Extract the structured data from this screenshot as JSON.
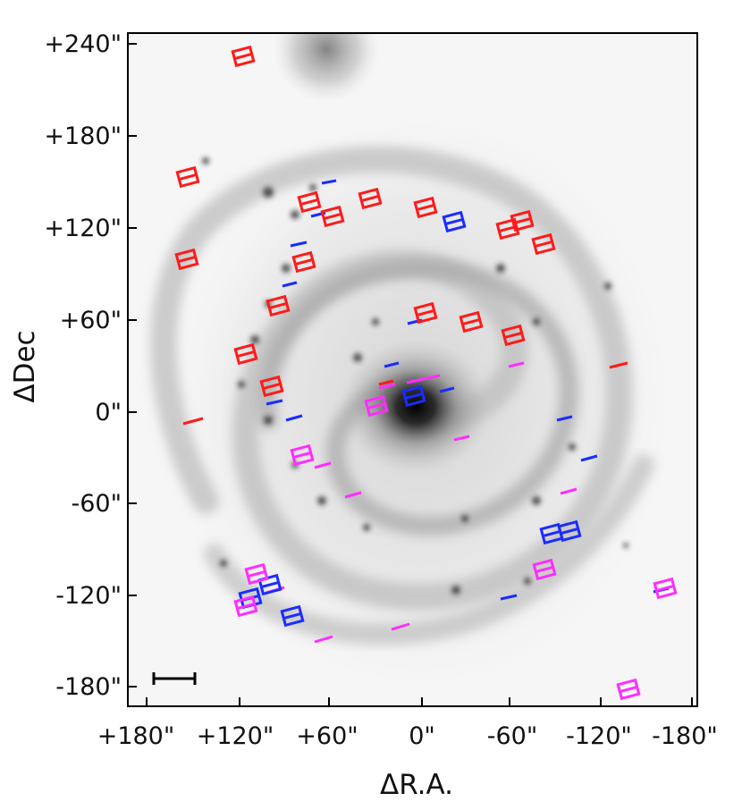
{
  "axes": {
    "x_label": "ΔR.A.",
    "y_label": "ΔDec",
    "x_ticks": [
      "+180\"",
      "+120\"",
      "+60\"",
      "0\"",
      "-60\"",
      "-120\"",
      "-180\""
    ],
    "y_ticks": [
      "+240\"",
      "+180\"",
      "+120\"",
      "+60\"",
      "0\"",
      "-60\"",
      "-120\"",
      "-180\""
    ]
  },
  "colors": {
    "red": "#ff1a1a",
    "blue": "#1a2cff",
    "magenta": "#ff2dff",
    "frame": "#000000",
    "background": "#f7f7f7"
  },
  "scale_bar": "present"
}
